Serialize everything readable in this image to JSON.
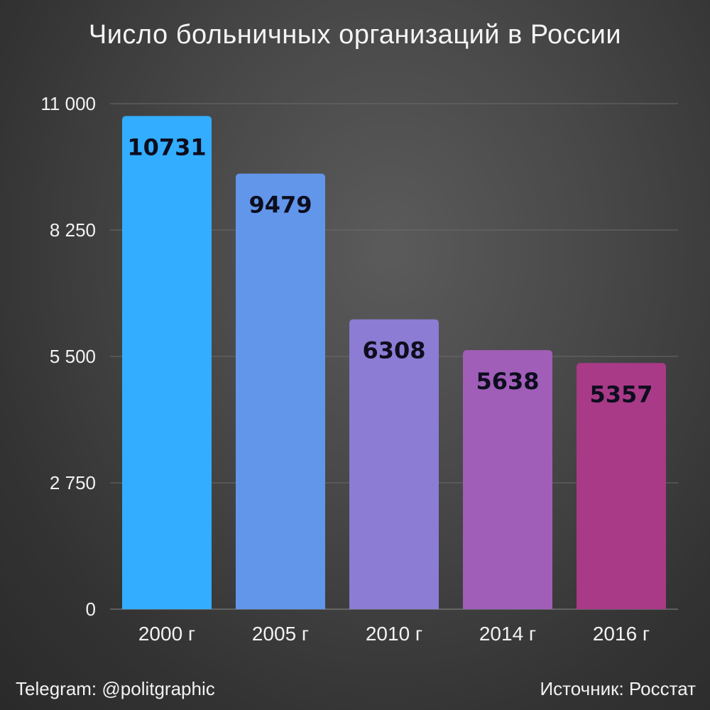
{
  "chart_data": {
    "type": "bar",
    "title": "Число больничных организаций в России",
    "categories": [
      "2000 г",
      "2005 г",
      "2010 г",
      "2014 г",
      "2016 г"
    ],
    "values": [
      10731,
      9479,
      6308,
      5638,
      5357
    ],
    "value_labels": [
      "10731",
      "9479",
      "6308",
      "5638",
      "5357"
    ],
    "bar_colors": [
      "#33adff",
      "#6196ea",
      "#8c7cd3",
      "#a05eb8",
      "#a93a88"
    ],
    "ylim": [
      0,
      11000
    ],
    "yticks": [
      0,
      2750,
      5500,
      8250,
      11000
    ],
    "ytick_labels": [
      "0",
      "2 750",
      "5 500",
      "8 250",
      "11 000"
    ],
    "grid": true,
    "legend": "none"
  },
  "footer": {
    "telegram": "Telegram: @politgraphic",
    "source": "Источник: Росстат"
  }
}
